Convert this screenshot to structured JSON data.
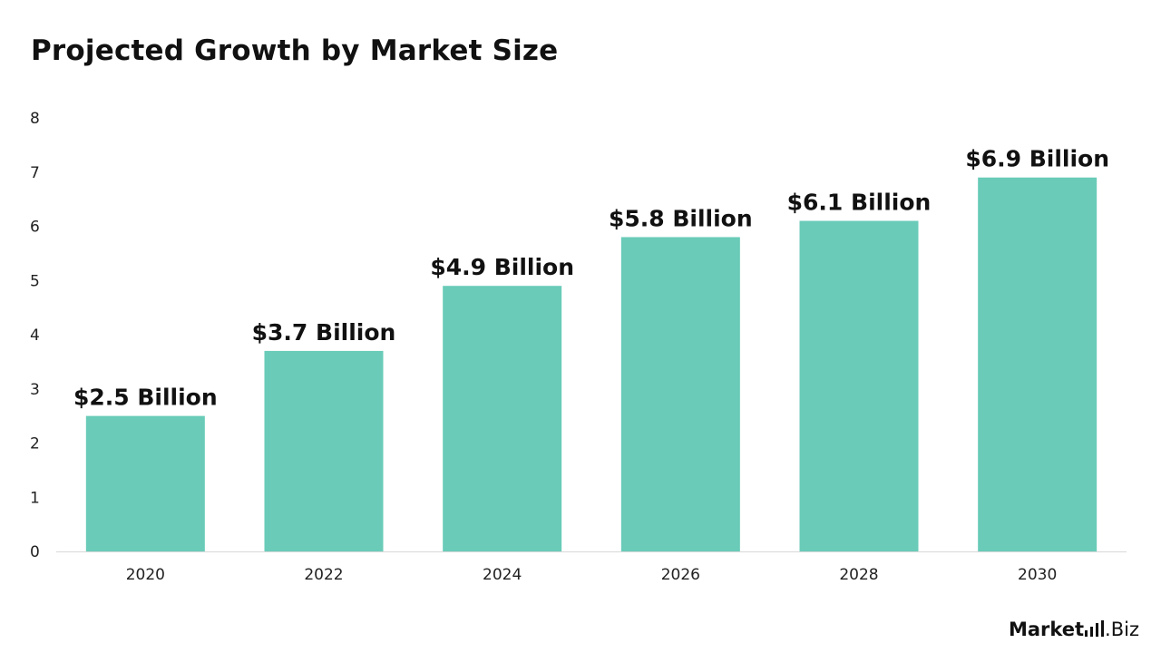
{
  "title": "Projected Growth by Market Size",
  "brand": {
    "part_a": "Market",
    "part_b": ".Biz",
    "icon": "bar-chart-icon"
  },
  "colors": {
    "bar": "#69CBB8",
    "axis": "#d9d9d9",
    "text": "#111111"
  },
  "chart_data": {
    "type": "bar",
    "title": "Projected Growth by Market Size",
    "xlabel": "",
    "ylabel": "",
    "categories": [
      "2020",
      "2022",
      "2024",
      "2026",
      "2028",
      "2030"
    ],
    "values": [
      2.5,
      3.7,
      4.9,
      5.8,
      6.1,
      6.9
    ],
    "data_labels": [
      "$2.5 Billion",
      "$3.7 Billion",
      "$4.9 Billion",
      "$5.8 Billion",
      "$6.1 Billion",
      "$6.9 Billion"
    ],
    "yticks": [
      "0",
      "1",
      "2",
      "3",
      "4",
      "5",
      "6",
      "7",
      "8"
    ],
    "ylim": [
      0,
      8
    ],
    "grid": false,
    "legend": "none"
  }
}
